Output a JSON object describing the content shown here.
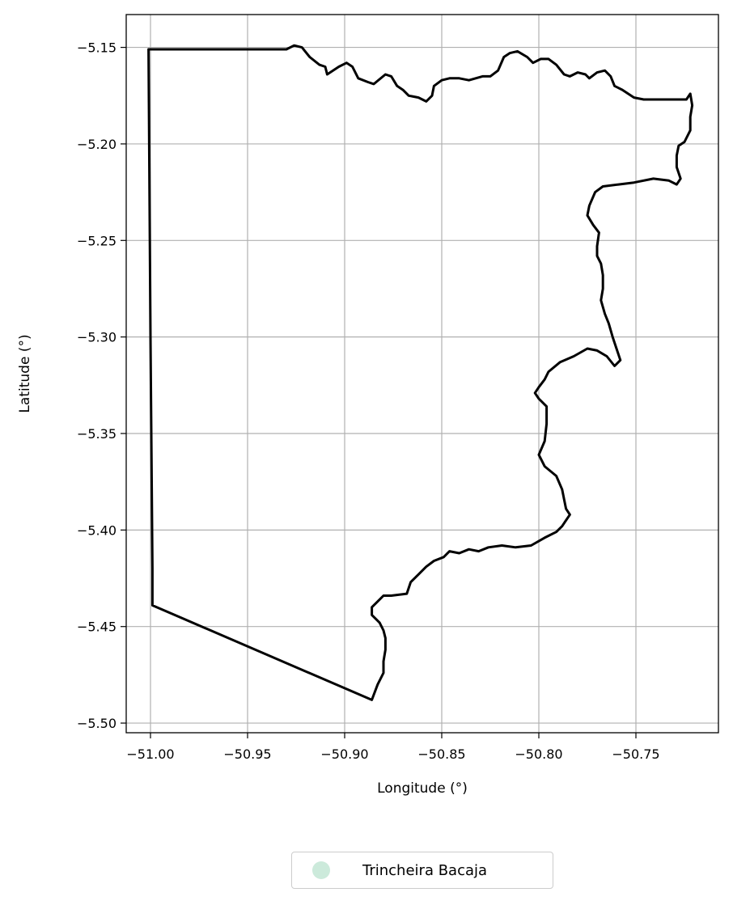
{
  "chart_data": {
    "type": "map",
    "xlabel": "Longitude (°)",
    "ylabel": "Latitude (°)",
    "xlim": [
      -51.0125,
      -50.7075
    ],
    "ylim": [
      -5.505,
      -5.133
    ],
    "grid": true,
    "x_ticks": [
      {
        "value": -51.0,
        "label": "−51.00"
      },
      {
        "value": -50.95,
        "label": "−50.95"
      },
      {
        "value": -50.9,
        "label": "−50.90"
      },
      {
        "value": -50.85,
        "label": "−50.85"
      },
      {
        "value": -50.8,
        "label": "−50.80"
      },
      {
        "value": -50.75,
        "label": "−50.75"
      }
    ],
    "y_ticks": [
      {
        "value": -5.15,
        "label": "−5.15"
      },
      {
        "value": -5.2,
        "label": "−5.20"
      },
      {
        "value": -5.25,
        "label": "−5.25"
      },
      {
        "value": -5.3,
        "label": "−5.30"
      },
      {
        "value": -5.35,
        "label": "−5.35"
      },
      {
        "value": -5.4,
        "label": "−5.40"
      },
      {
        "value": -5.45,
        "label": "−5.45"
      },
      {
        "value": -5.5,
        "label": "−5.50"
      }
    ],
    "boundary_color": "#000000",
    "grid_color": "#b0b0b0",
    "legend_position": "bottom-center",
    "series": [
      {
        "name": "Trincheira Bacaja",
        "color": "#cceadb",
        "boundary": [
          [
            -51.001,
            -5.151
          ],
          [
            -50.93,
            -5.151
          ],
          [
            -50.926,
            -5.149
          ],
          [
            -50.922,
            -5.15
          ],
          [
            -50.918,
            -5.155
          ],
          [
            -50.913,
            -5.159
          ],
          [
            -50.91,
            -5.16
          ],
          [
            -50.909,
            -5.164
          ],
          [
            -50.903,
            -5.16
          ],
          [
            -50.899,
            -5.158
          ],
          [
            -50.896,
            -5.16
          ],
          [
            -50.893,
            -5.166
          ],
          [
            -50.888,
            -5.168
          ],
          [
            -50.885,
            -5.169
          ],
          [
            -50.879,
            -5.164
          ],
          [
            -50.876,
            -5.165
          ],
          [
            -50.873,
            -5.17
          ],
          [
            -50.87,
            -5.172
          ],
          [
            -50.867,
            -5.175
          ],
          [
            -50.862,
            -5.176
          ],
          [
            -50.858,
            -5.178
          ],
          [
            -50.855,
            -5.175
          ],
          [
            -50.854,
            -5.17
          ],
          [
            -50.85,
            -5.167
          ],
          [
            -50.846,
            -5.166
          ],
          [
            -50.841,
            -5.166
          ],
          [
            -50.836,
            -5.167
          ],
          [
            -50.829,
            -5.165
          ],
          [
            -50.825,
            -5.165
          ],
          [
            -50.821,
            -5.162
          ],
          [
            -50.818,
            -5.155
          ],
          [
            -50.815,
            -5.153
          ],
          [
            -50.811,
            -5.152
          ],
          [
            -50.806,
            -5.155
          ],
          [
            -50.803,
            -5.158
          ],
          [
            -50.799,
            -5.156
          ],
          [
            -50.795,
            -5.156
          ],
          [
            -50.791,
            -5.159
          ],
          [
            -50.787,
            -5.164
          ],
          [
            -50.784,
            -5.165
          ],
          [
            -50.78,
            -5.163
          ],
          [
            -50.776,
            -5.164
          ],
          [
            -50.774,
            -5.166
          ],
          [
            -50.77,
            -5.163
          ],
          [
            -50.766,
            -5.162
          ],
          [
            -50.763,
            -5.165
          ],
          [
            -50.761,
            -5.17
          ],
          [
            -50.757,
            -5.172
          ],
          [
            -50.754,
            -5.174
          ],
          [
            -50.751,
            -5.176
          ],
          [
            -50.746,
            -5.177
          ],
          [
            -50.737,
            -5.177
          ],
          [
            -50.724,
            -5.177
          ],
          [
            -50.722,
            -5.174
          ],
          [
            -50.721,
            -5.18
          ],
          [
            -50.722,
            -5.186
          ],
          [
            -50.722,
            -5.193
          ],
          [
            -50.725,
            -5.199
          ],
          [
            -50.728,
            -5.201
          ],
          [
            -50.729,
            -5.206
          ],
          [
            -50.729,
            -5.212
          ],
          [
            -50.727,
            -5.218
          ],
          [
            -50.729,
            -5.221
          ],
          [
            -50.733,
            -5.219
          ],
          [
            -50.741,
            -5.218
          ],
          [
            -50.751,
            -5.22
          ],
          [
            -50.759,
            -5.221
          ],
          [
            -50.767,
            -5.222
          ],
          [
            -50.771,
            -5.225
          ],
          [
            -50.774,
            -5.232
          ],
          [
            -50.775,
            -5.237
          ],
          [
            -50.772,
            -5.242
          ],
          [
            -50.769,
            -5.246
          ],
          [
            -50.77,
            -5.253
          ],
          [
            -50.77,
            -5.258
          ],
          [
            -50.768,
            -5.262
          ],
          [
            -50.767,
            -5.268
          ],
          [
            -50.767,
            -5.275
          ],
          [
            -50.768,
            -5.281
          ],
          [
            -50.766,
            -5.288
          ],
          [
            -50.764,
            -5.293
          ],
          [
            -50.762,
            -5.3
          ],
          [
            -50.76,
            -5.306
          ],
          [
            -50.758,
            -5.312
          ],
          [
            -50.761,
            -5.315
          ],
          [
            -50.765,
            -5.31
          ],
          [
            -50.77,
            -5.307
          ],
          [
            -50.775,
            -5.306
          ],
          [
            -50.782,
            -5.31
          ],
          [
            -50.789,
            -5.313
          ],
          [
            -50.795,
            -5.318
          ],
          [
            -50.797,
            -5.322
          ],
          [
            -50.8,
            -5.326
          ],
          [
            -50.802,
            -5.329
          ],
          [
            -50.8,
            -5.332
          ],
          [
            -50.796,
            -5.336
          ],
          [
            -50.796,
            -5.345
          ],
          [
            -50.797,
            -5.354
          ],
          [
            -50.8,
            -5.361
          ],
          [
            -50.797,
            -5.367
          ],
          [
            -50.791,
            -5.372
          ],
          [
            -50.788,
            -5.379
          ],
          [
            -50.787,
            -5.384
          ],
          [
            -50.786,
            -5.389
          ],
          [
            -50.784,
            -5.392
          ],
          [
            -50.786,
            -5.395
          ],
          [
            -50.788,
            -5.398
          ],
          [
            -50.791,
            -5.401
          ],
          [
            -50.797,
            -5.404
          ],
          [
            -50.804,
            -5.408
          ],
          [
            -50.812,
            -5.409
          ],
          [
            -50.819,
            -5.408
          ],
          [
            -50.826,
            -5.409
          ],
          [
            -50.831,
            -5.411
          ],
          [
            -50.836,
            -5.41
          ],
          [
            -50.841,
            -5.412
          ],
          [
            -50.846,
            -5.411
          ],
          [
            -50.849,
            -5.414
          ],
          [
            -50.854,
            -5.416
          ],
          [
            -50.858,
            -5.419
          ],
          [
            -50.862,
            -5.423
          ],
          [
            -50.866,
            -5.427
          ],
          [
            -50.868,
            -5.433
          ],
          [
            -50.876,
            -5.434
          ],
          [
            -50.88,
            -5.434
          ],
          [
            -50.883,
            -5.437
          ],
          [
            -50.886,
            -5.44
          ],
          [
            -50.886,
            -5.444
          ],
          [
            -50.882,
            -5.448
          ],
          [
            -50.88,
            -5.452
          ],
          [
            -50.879,
            -5.456
          ],
          [
            -50.879,
            -5.462
          ],
          [
            -50.88,
            -5.468
          ],
          [
            -50.88,
            -5.474
          ],
          [
            -50.883,
            -5.48
          ],
          [
            -50.886,
            -5.488
          ],
          [
            -50.999,
            -5.439
          ],
          [
            -50.999,
            -5.434
          ],
          [
            -50.999,
            -5.42
          ],
          [
            -51.0,
            -5.3
          ],
          [
            -51.001,
            -5.151
          ]
        ]
      }
    ]
  }
}
